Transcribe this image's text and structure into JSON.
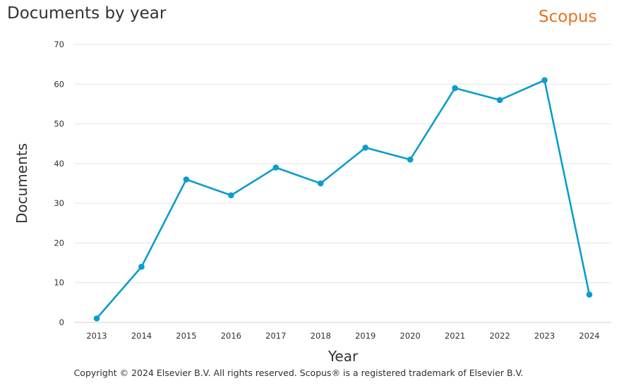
{
  "header": {
    "title": "Documents by year",
    "logo_text": "Scopus",
    "logo_color": "#e9711c"
  },
  "footer": {
    "copyright": "Copyright © 2024 Elsevier B.V. All rights reserved. Scopus® is a registered trademark of Elsevier B.V."
  },
  "chart_data": {
    "type": "line",
    "title": "Documents by year",
    "xlabel": "Year",
    "ylabel": "Documents",
    "x": [
      "2013",
      "2014",
      "2015",
      "2016",
      "2017",
      "2018",
      "2019",
      "2020",
      "2021",
      "2022",
      "2023",
      "2024"
    ],
    "series": [
      {
        "values": [
          1,
          14,
          36,
          32,
          39,
          35,
          44,
          41,
          59,
          56,
          61,
          7
        ],
        "color": "#0d9ccd"
      }
    ],
    "ylim": [
      0,
      70
    ],
    "yticks": [
      0,
      10,
      20,
      30,
      40,
      50,
      60,
      70
    ],
    "grid": true,
    "legend": "none",
    "gridline_color": "#e3e3e3"
  }
}
